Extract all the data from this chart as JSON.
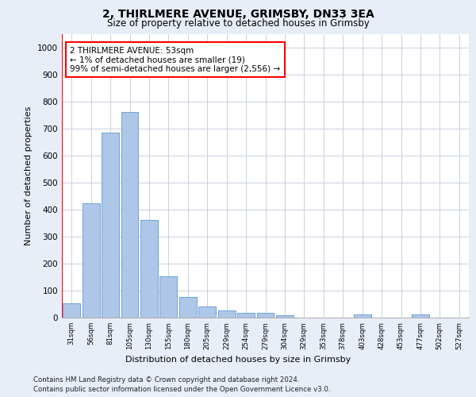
{
  "title1": "2, THIRLMERE AVENUE, GRIMSBY, DN33 3EA",
  "title2": "Size of property relative to detached houses in Grimsby",
  "xlabel": "Distribution of detached houses by size in Grimsby",
  "ylabel": "Number of detached properties",
  "categories": [
    "31sqm",
    "56sqm",
    "81sqm",
    "105sqm",
    "130sqm",
    "155sqm",
    "180sqm",
    "205sqm",
    "229sqm",
    "254sqm",
    "279sqm",
    "304sqm",
    "329sqm",
    "353sqm",
    "378sqm",
    "403sqm",
    "428sqm",
    "453sqm",
    "477sqm",
    "502sqm",
    "527sqm"
  ],
  "values": [
    52,
    424,
    685,
    760,
    362,
    153,
    75,
    40,
    27,
    18,
    18,
    10,
    0,
    0,
    0,
    12,
    0,
    0,
    12,
    0,
    0
  ],
  "bar_color": "#aec6e8",
  "bar_edge_color": "#5b9bd5",
  "highlight_color": "#ff0000",
  "annotation_text": "2 THIRLMERE AVENUE: 53sqm\n← 1% of detached houses are smaller (19)\n99% of semi-detached houses are larger (2,556) →",
  "annotation_box_color": "#ffffff",
  "annotation_border_color": "#ff0000",
  "ylim": [
    0,
    1050
  ],
  "yticks": [
    0,
    100,
    200,
    300,
    400,
    500,
    600,
    700,
    800,
    900,
    1000
  ],
  "footer1": "Contains HM Land Registry data © Crown copyright and database right 2024.",
  "footer2": "Contains public sector information licensed under the Open Government Licence v3.0.",
  "background_color": "#e8eef8",
  "plot_background": "#ffffff",
  "grid_color": "#c8d0e0"
}
